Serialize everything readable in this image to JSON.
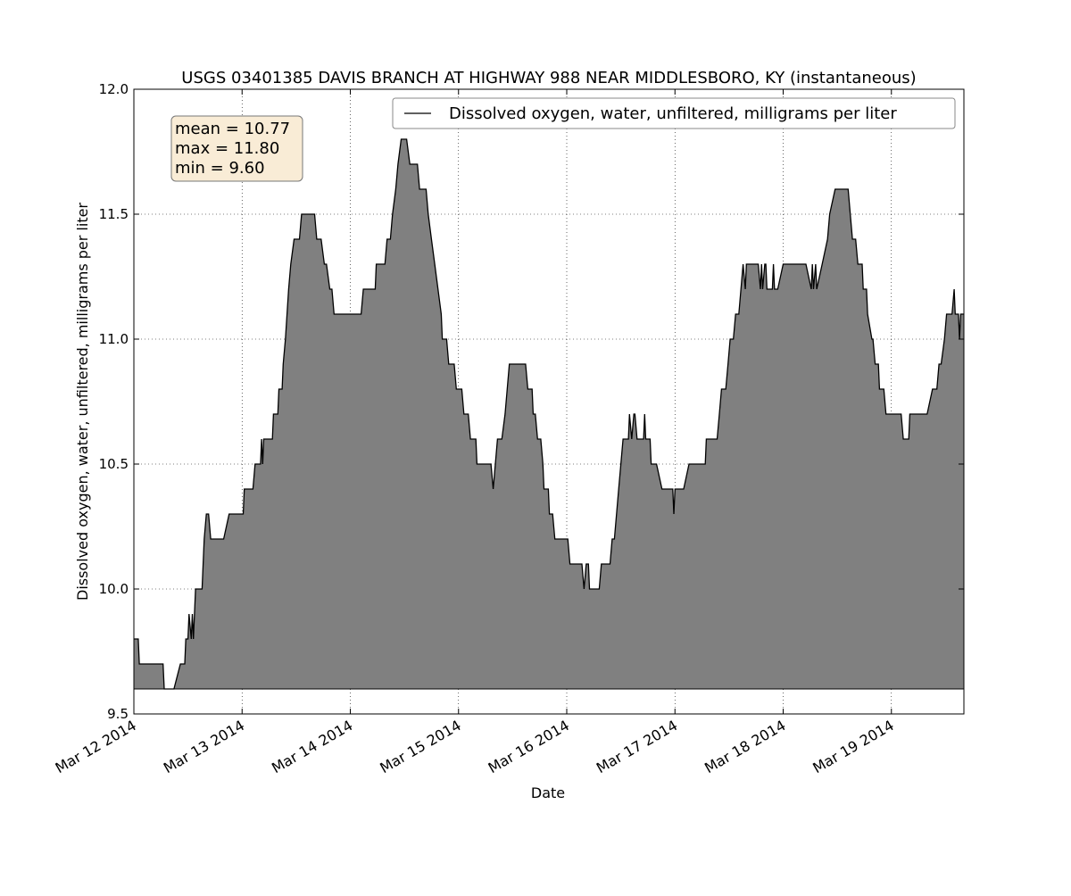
{
  "chart_data": {
    "type": "area",
    "title": "USGS 03401385 DAVIS BRANCH AT HIGHWAY 988 NEAR MIDDLESBORO, KY (instantaneous)",
    "xlabel": "Date",
    "ylabel": "Dissolved oxygen, water, unfiltered, milligrams per liter",
    "stats_text": [
      "mean = 10.77",
      "max = 11.80",
      "min = 9.60"
    ],
    "fill_to": 9.6,
    "grid": true,
    "legend": "upper right",
    "xlim": [
      0,
      7.67
    ],
    "xticks": [
      {
        "value": 0,
        "label": "Mar 12 2014"
      },
      {
        "value": 1,
        "label": "Mar 13 2014"
      },
      {
        "value": 2,
        "label": "Mar 14 2014"
      },
      {
        "value": 3,
        "label": "Mar 15 2014"
      },
      {
        "value": 4,
        "label": "Mar 16 2014"
      },
      {
        "value": 5,
        "label": "Mar 17 2014"
      },
      {
        "value": 6,
        "label": "Mar 18 2014"
      },
      {
        "value": 7,
        "label": "Mar 19 2014"
      }
    ],
    "ylim": [
      9.5,
      12
    ],
    "yticks": [
      9.5,
      {
        "value": 10,
        "label": "10.0"
      },
      10.5,
      {
        "value": 11,
        "label": "11.0"
      },
      11.5,
      {
        "value": 12,
        "label": "12.0"
      }
    ],
    "x": [
      0,
      0.04,
      0.05,
      0.27,
      0.28,
      0.37,
      0.43,
      0.47,
      0.48,
      0.5,
      0.51,
      0.53,
      0.54,
      0.55,
      0.57,
      0.63,
      0.65,
      0.67,
      0.69,
      0.71,
      0.83,
      0.88,
      1.01,
      1.02,
      1.1,
      1.12,
      1.17,
      1.18,
      1.19,
      1.2,
      1.28,
      1.29,
      1.33,
      1.34,
      1.37,
      1.38,
      1.4,
      1.43,
      1.45,
      1.48,
      1.53,
      1.55,
      1.67,
      1.69,
      1.73,
      1.76,
      1.78,
      1.81,
      1.83,
      1.85,
      2.1,
      2.12,
      2.23,
      2.24,
      2.32,
      2.34,
      2.37,
      2.39,
      2.42,
      2.44,
      2.47,
      2.52,
      2.55,
      2.62,
      2.64,
      2.7,
      2.72,
      2.75,
      2.78,
      2.84,
      2.85,
      2.89,
      2.91,
      2.96,
      2.98,
      3.03,
      3.05,
      3.09,
      3.11,
      3.16,
      3.17,
      3.3,
      3.32,
      3.34,
      3.36,
      3.4,
      3.43,
      3.45,
      3.47,
      3.62,
      3.64,
      3.68,
      3.69,
      3.71,
      3.73,
      3.76,
      3.78,
      3.79,
      3.83,
      3.84,
      3.87,
      3.89,
      4.01,
      4.03,
      4.14,
      4.16,
      4.18,
      4.2,
      4.21,
      4.3,
      4.32,
      4.4,
      4.42,
      4.44,
      4.46,
      4.48,
      4.52,
      4.57,
      4.58,
      4.6,
      4.62,
      4.63,
      4.65,
      4.71,
      4.72,
      4.73,
      4.77,
      4.78,
      4.83,
      4.88,
      4.98,
      4.99,
      5.0,
      5.08,
      5.13,
      5.28,
      5.29,
      5.39,
      5.41,
      5.43,
      5.47,
      5.49,
      5.51,
      5.54,
      5.56,
      5.59,
      5.61,
      5.63,
      5.65,
      5.66,
      5.77,
      5.79,
      5.8,
      5.81,
      5.83,
      5.84,
      5.85,
      5.9,
      5.91,
      5.92,
      5.95,
      6.0,
      6.21,
      6.26,
      6.27,
      6.28,
      6.3,
      6.31,
      6.36,
      6.41,
      6.43,
      6.48,
      6.6,
      6.62,
      6.64,
      6.67,
      6.69,
      6.73,
      6.74,
      6.77,
      6.78,
      6.82,
      6.83,
      6.85,
      6.88,
      6.89,
      6.93,
      6.95,
      7.09,
      7.11,
      7.16,
      7.17,
      7.33,
      7.38,
      7.42,
      7.44,
      7.46,
      7.49,
      7.51,
      7.56,
      7.58,
      7.59,
      7.62,
      7.63,
      7.64,
      7.67
    ],
    "series": [
      {
        "name": "Dissolved oxygen, water, unfiltered, milligrams per liter",
        "color": "#000000",
        "fill": "#808080",
        "values": [
          9.8,
          9.8,
          9.7,
          9.7,
          9.6,
          9.6,
          9.7,
          9.7,
          9.8,
          9.8,
          9.9,
          9.8,
          9.9,
          9.8,
          10.0,
          10.0,
          10.2,
          10.3,
          10.3,
          10.2,
          10.2,
          10.3,
          10.3,
          10.4,
          10.4,
          10.5,
          10.5,
          10.6,
          10.5,
          10.6,
          10.6,
          10.7,
          10.7,
          10.8,
          10.8,
          10.9,
          11.0,
          11.2,
          11.3,
          11.4,
          11.4,
          11.5,
          11.5,
          11.4,
          11.4,
          11.3,
          11.3,
          11.2,
          11.2,
          11.1,
          11.1,
          11.2,
          11.2,
          11.3,
          11.3,
          11.4,
          11.4,
          11.5,
          11.6,
          11.7,
          11.8,
          11.8,
          11.7,
          11.7,
          11.6,
          11.6,
          11.5,
          11.4,
          11.3,
          11.1,
          11.0,
          11.0,
          10.9,
          10.9,
          10.8,
          10.8,
          10.7,
          10.7,
          10.6,
          10.6,
          10.5,
          10.5,
          10.4,
          10.5,
          10.6,
          10.6,
          10.7,
          10.8,
          10.9,
          10.9,
          10.8,
          10.8,
          10.7,
          10.7,
          10.6,
          10.6,
          10.5,
          10.4,
          10.4,
          10.3,
          10.3,
          10.2,
          10.2,
          10.1,
          10.1,
          10.0,
          10.1,
          10.1,
          10.0,
          10.0,
          10.1,
          10.1,
          10.2,
          10.2,
          10.3,
          10.4,
          10.6,
          10.6,
          10.7,
          10.6,
          10.7,
          10.7,
          10.6,
          10.6,
          10.7,
          10.6,
          10.6,
          10.5,
          10.5,
          10.4,
          10.4,
          10.3,
          10.4,
          10.4,
          10.5,
          10.5,
          10.6,
          10.6,
          10.7,
          10.8,
          10.8,
          10.9,
          11.0,
          11.0,
          11.1,
          11.1,
          11.2,
          11.3,
          11.2,
          11.3,
          11.3,
          11.2,
          11.3,
          11.2,
          11.3,
          11.3,
          11.2,
          11.2,
          11.3,
          11.2,
          11.2,
          11.3,
          11.3,
          11.2,
          11.3,
          11.2,
          11.3,
          11.2,
          11.3,
          11.4,
          11.5,
          11.6,
          11.6,
          11.5,
          11.4,
          11.4,
          11.3,
          11.3,
          11.2,
          11.2,
          11.1,
          11.0,
          11.0,
          10.9,
          10.9,
          10.8,
          10.8,
          10.7,
          10.7,
          10.6,
          10.6,
          10.7,
          10.7,
          10.8,
          10.8,
          10.9,
          10.9,
          11.0,
          11.1,
          11.1,
          11.2,
          11.1,
          11.1,
          11.0,
          11.1,
          11.1
        ]
      }
    ]
  }
}
